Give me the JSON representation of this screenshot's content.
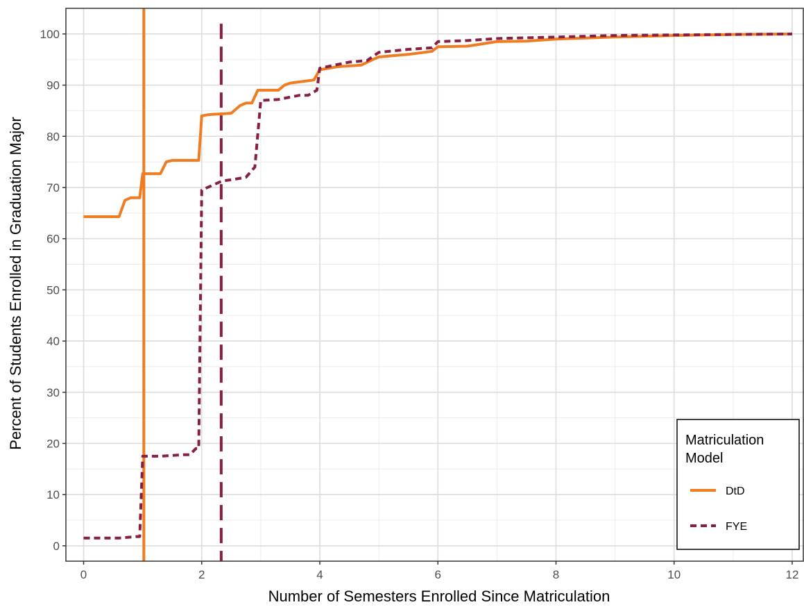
{
  "chart_data": {
    "type": "line",
    "xlabel": "Number of Semesters Enrolled Since Matriculation",
    "ylabel": "Percent of Students Enrolled in Graduation Major",
    "xlim": [
      -0.3,
      12.2
    ],
    "ylim": [
      -3,
      105
    ],
    "x_ticks": [
      0,
      2,
      4,
      6,
      8,
      10,
      12
    ],
    "y_ticks": [
      0,
      10,
      20,
      30,
      40,
      50,
      60,
      70,
      80,
      90,
      100
    ],
    "grid": true,
    "legend": {
      "title": "Matriculation Model",
      "title_lines": [
        "Matriculation",
        "Model"
      ],
      "placement": "bottom-right"
    },
    "series": [
      {
        "name": "DtD",
        "color": "#F07C22",
        "dash": "solid",
        "x": [
          0,
          0.6,
          0.7,
          0.8,
          0.95,
          1.0,
          1.05,
          1.3,
          1.4,
          1.5,
          1.95,
          2.0,
          2.1,
          2.2,
          2.5,
          2.65,
          2.75,
          2.85,
          2.95,
          3.0,
          3.3,
          3.4,
          3.5,
          3.7,
          3.9,
          4.0,
          4.3,
          4.7,
          4.9,
          5.0,
          5.5,
          5.9,
          6.0,
          6.5,
          7.0,
          7.5,
          8.0,
          9.0,
          10.0,
          11.0,
          12.0
        ],
        "y": [
          64.3,
          64.3,
          67.5,
          68.0,
          68.0,
          72.7,
          72.7,
          72.7,
          75.0,
          75.3,
          75.3,
          84.0,
          84.2,
          84.3,
          84.5,
          86.0,
          86.5,
          86.5,
          89.0,
          89.0,
          89.0,
          90.0,
          90.4,
          90.7,
          91.0,
          93.0,
          93.6,
          93.9,
          95.0,
          95.5,
          96.0,
          96.6,
          97.5,
          97.6,
          98.5,
          98.6,
          99.0,
          99.4,
          99.7,
          99.9,
          100.0
        ]
      },
      {
        "name": "FYE",
        "color": "#861F41",
        "dash": "dashed",
        "x": [
          0,
          0.6,
          0.9,
          0.95,
          1.0,
          1.3,
          1.7,
          1.8,
          1.9,
          1.95,
          2.0,
          2.35,
          2.5,
          2.75,
          2.9,
          3.0,
          3.3,
          3.65,
          3.8,
          3.95,
          4.0,
          4.5,
          4.8,
          5.0,
          5.5,
          5.9,
          6.0,
          6.5,
          7.0,
          8.0,
          9.0,
          10.0,
          11.0,
          12.0
        ],
        "y": [
          1.5,
          1.5,
          1.8,
          1.8,
          17.5,
          17.5,
          17.8,
          17.8,
          19.0,
          19.0,
          69.5,
          71.3,
          71.5,
          72.0,
          74.0,
          87.0,
          87.2,
          88.0,
          88.0,
          89.0,
          93.3,
          94.5,
          94.8,
          96.4,
          97.0,
          97.3,
          98.5,
          98.7,
          99.1,
          99.4,
          99.7,
          99.8,
          99.9,
          100.0
        ]
      }
    ],
    "vlines": [
      {
        "series": "DtD",
        "x": 1.02,
        "color": "#F07C22",
        "dash": "solid"
      },
      {
        "series": "FYE",
        "x": 2.33,
        "color": "#861F41",
        "dash": "dashed"
      }
    ]
  }
}
